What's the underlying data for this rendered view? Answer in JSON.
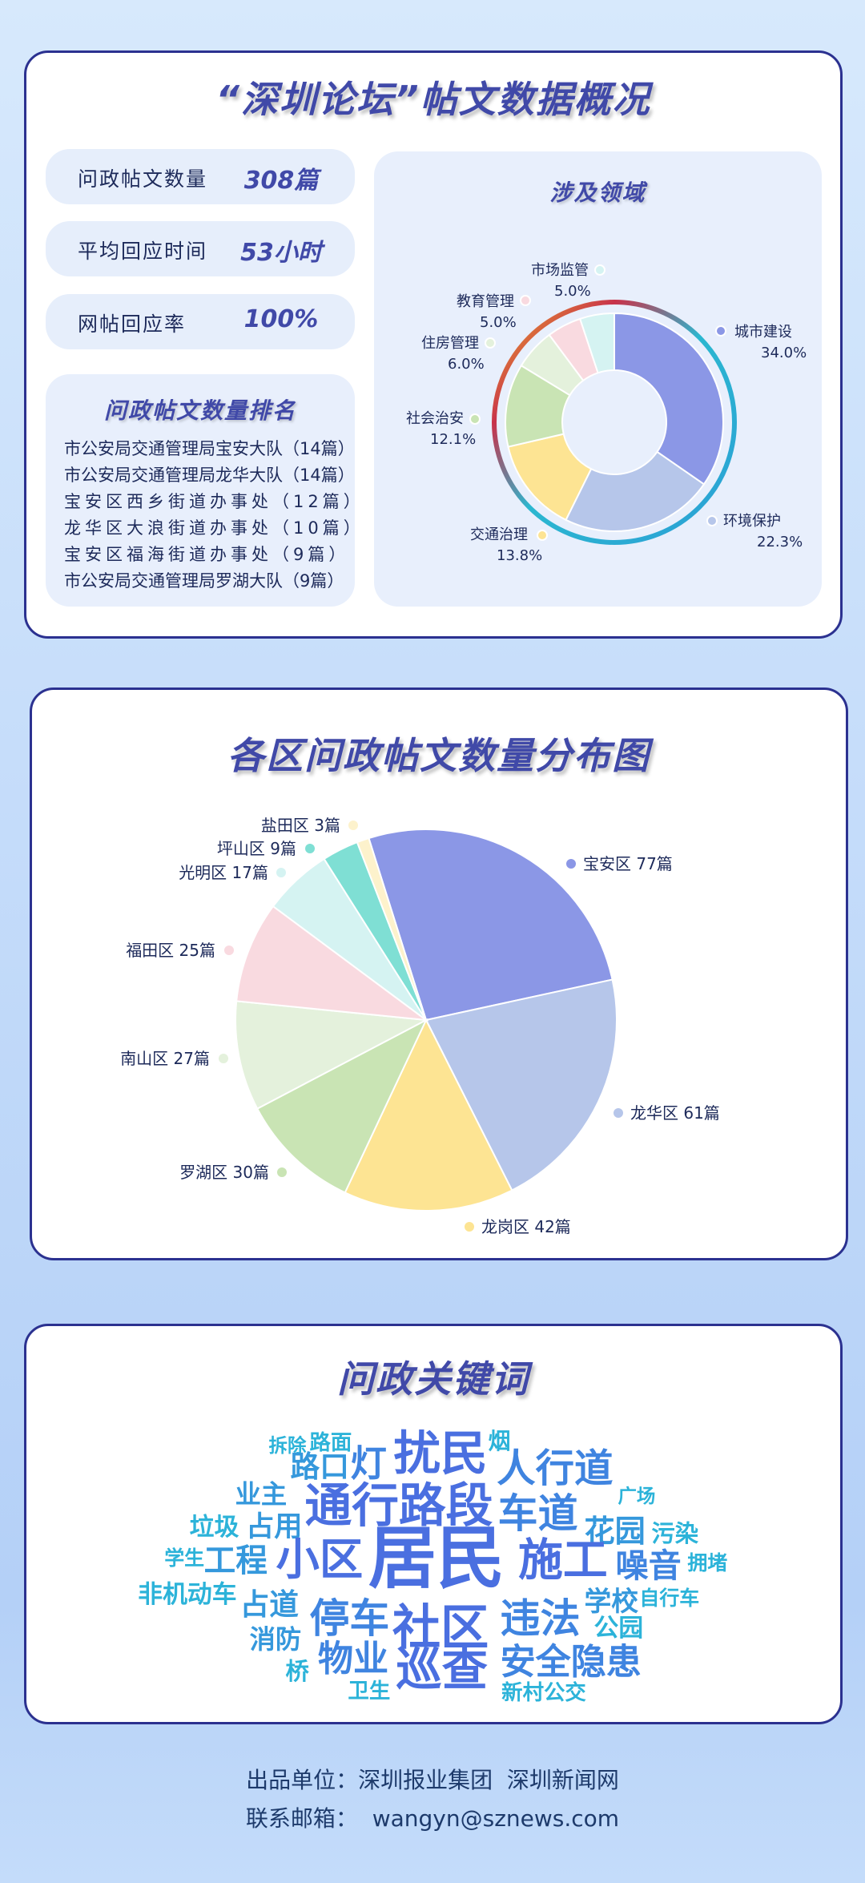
{
  "overview": {
    "title": "“深圳论坛”帖文数据概况",
    "stats": [
      {
        "label": "问政帖文数量",
        "value": "308篇"
      },
      {
        "label": "平均回应时间",
        "value": "53小时"
      },
      {
        "label": "网帖回应率",
        "value": "100%"
      }
    ],
    "ranking": {
      "title": "问政帖文数量排名",
      "items": [
        "市公安局交通管理局宝安大队（14篇）",
        "市公安局交通管理局龙华大队（14篇）",
        "宝安区西乡街道办事处（12篇）",
        "龙华区大浪街道办事处（10篇）",
        "宝安区福海街道办事处（9篇）",
        "市公安局交通管理局罗湖大队（9篇）"
      ]
    }
  },
  "chart_data": [
    {
      "type": "pie",
      "variant": "donut",
      "title": "涉及领域",
      "categories": [
        "城市建设",
        "环境保护",
        "交通治理",
        "社会治安",
        "住房管理",
        "教育管理",
        "市场监管"
      ],
      "values": [
        34.0,
        22.3,
        13.8,
        12.1,
        6.0,
        5.0,
        5.0
      ],
      "labels": [
        "34.0%",
        "22.3%",
        "13.8%",
        "12.1%",
        "6.0%",
        "5.0%",
        "5.0%"
      ],
      "colors": [
        "#8b97e6",
        "#b6c6ea",
        "#fde493",
        "#c9e4b4",
        "#e4f1dc",
        "#f9dae0",
        "#d5f3f2"
      ]
    },
    {
      "type": "pie",
      "title": "各区问政帖文数量分布图",
      "categories": [
        "宝安区",
        "龙华区",
        "龙岗区",
        "罗湖区",
        "南山区",
        "福田区",
        "光明区",
        "坪山区",
        "盐田区"
      ],
      "values": [
        77,
        61,
        42,
        30,
        27,
        25,
        17,
        9,
        3
      ],
      "labels": [
        "宝安区 77篇",
        "龙华区 61篇",
        "龙岗区 42篇",
        "罗湖区 30篇",
        "南山区 27篇",
        "福田区 25篇",
        "光明区 17篇",
        "坪山区 9篇",
        "盐田区 3篇"
      ],
      "colors": [
        "#8b97e6",
        "#b6c6ea",
        "#fde493",
        "#c9e4b4",
        "#e4f1dc",
        "#f9dae0",
        "#d5f3f2",
        "#7fdfd4",
        "#fdf2cc"
      ]
    }
  ],
  "keywords": {
    "title": "问政关键词",
    "words": [
      "拆除",
      "路面",
      "路口",
      "灯",
      "扰民",
      "烟",
      "人行道",
      "业主",
      "通行路段",
      "车道",
      "广场",
      "垃圾",
      "占用",
      "花园",
      "污染",
      "学生",
      "工程",
      "小区",
      "居民",
      "施工",
      "噪音",
      "拥堵",
      "非机动车",
      "占道",
      "停车",
      "社区",
      "违法",
      "学校",
      "自行车",
      "公园",
      "消防",
      "桥",
      "物业",
      "巡查",
      "安全隐患",
      "卫生",
      "新村公交"
    ]
  },
  "footer": {
    "producer": "出品单位：深圳报业集团  深圳新闻网",
    "contact": "联系邮箱：  wangyn@sznews.com"
  }
}
